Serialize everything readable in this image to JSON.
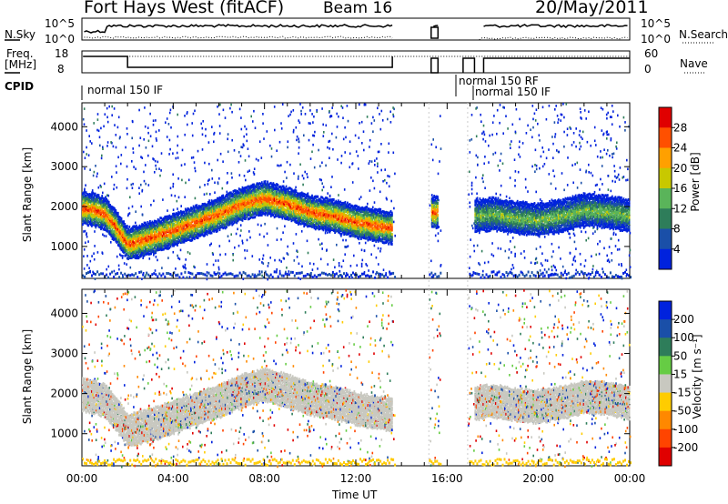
{
  "header": {
    "title": "Fort Hays West (fitACF)",
    "beam": "Beam 16",
    "date": "20/May/2011"
  },
  "strip": {
    "nsky_label": "N.Sky",
    "nsky_top": "10^5",
    "nsky_bottom": "10^0",
    "nsearch_label": "N.Search",
    "freq_label_1": "Freq.",
    "freq_label_2": "[MHz]",
    "freq_top": "18",
    "freq_bottom": "8",
    "nave_label": "Nave",
    "nave_top": "60",
    "nave_bottom": "0",
    "cpid_label": "CPID",
    "cpid_1": "normal 150 IF",
    "cpid_2": "normal 150 RF",
    "cpid_3": "normal 150 IF"
  },
  "chart_data": [
    {
      "type": "heatmap",
      "ylabel": "Slant Range [km]",
      "yticks": [
        "1000",
        "2000",
        "3000",
        "4000"
      ],
      "ylim": [
        200,
        4600
      ],
      "xlim": [
        "00:00",
        "24:00"
      ],
      "colorbar": {
        "label": "Power [dB]",
        "ticks": [
          "4",
          "8",
          "12",
          "16",
          "20",
          "24",
          "28"
        ],
        "colors": [
          "#0022dd",
          "#1a4fa8",
          "#2e7d5a",
          "#5ab45a",
          "#c8c800",
          "#ffa000",
          "#ff5000",
          "#e00000"
        ]
      },
      "bands": [
        {
          "t": [
            0.0,
            0.5,
            1.0,
            1.5,
            2.0,
            3.0,
            4.0,
            5.0,
            6.0,
            7.0,
            8.0,
            9.0,
            10.0,
            11.0,
            12.0,
            13.0,
            13.6
          ],
          "r": [
            2000,
            1950,
            1850,
            1500,
            1100,
            1250,
            1450,
            1650,
            1850,
            2100,
            2250,
            2100,
            1900,
            1800,
            1650,
            1550,
            1500
          ]
        },
        {
          "t": [
            15.3,
            15.6
          ],
          "r": [
            1900,
            1900
          ]
        },
        {
          "t": [
            17.2,
            18.0,
            19.0,
            20.0,
            21.0,
            22.0,
            23.0,
            24.0
          ],
          "r": [
            1800,
            1850,
            1750,
            1700,
            1800,
            1950,
            1900,
            1800
          ]
        }
      ]
    },
    {
      "type": "heatmap",
      "ylabel": "Slant Range [km]",
      "yticks": [
        "1000",
        "2000",
        "3000",
        "4000"
      ],
      "ylim": [
        200,
        4600
      ],
      "xlabel": "Time UT",
      "xticks": [
        "00:00",
        "04:00",
        "08:00",
        "12:00",
        "16:00",
        "20:00",
        "00:00"
      ],
      "colorbar": {
        "label": "Velocity [m s⁻¹]",
        "ticks": [
          "200",
          "100",
          "50",
          "15",
          "-15",
          "-50",
          "-100",
          "-200"
        ],
        "colors": [
          "#0022dd",
          "#1a4fa8",
          "#2e7d5a",
          "#66cc44",
          "#c8c8c0",
          "#ffcc00",
          "#ff8800",
          "#ff4400",
          "#e00000"
        ]
      },
      "bands": [
        {
          "t": [
            0.0,
            0.5,
            1.0,
            1.5,
            2.0,
            3.0,
            4.0,
            5.0,
            6.0,
            7.0,
            8.0,
            9.0,
            10.0,
            11.0,
            12.0,
            13.0,
            13.6
          ],
          "r": [
            2000,
            1950,
            1850,
            1500,
            1100,
            1250,
            1450,
            1650,
            1850,
            2100,
            2250,
            2100,
            1900,
            1800,
            1650,
            1550,
            1500
          ]
        },
        {
          "t": [
            17.2,
            18.0,
            19.0,
            20.0,
            21.0,
            22.0,
            23.0,
            24.0
          ],
          "r": [
            1800,
            1850,
            1750,
            1700,
            1800,
            1950,
            1900,
            1800
          ]
        }
      ]
    }
  ],
  "colors": {
    "axis": "#000000",
    "background": "#ffffff"
  }
}
